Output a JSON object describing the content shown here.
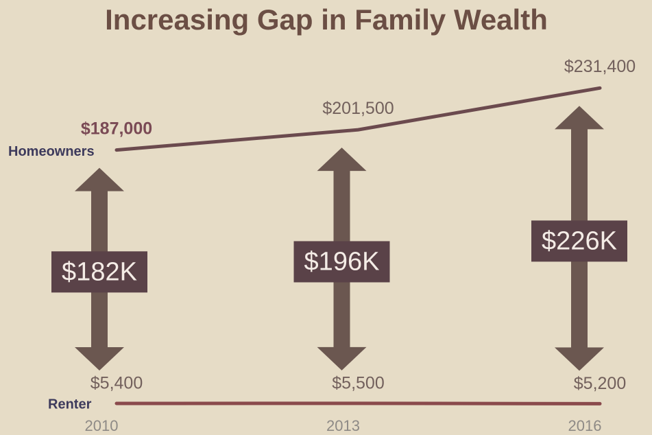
{
  "chart_data": {
    "type": "line",
    "title": "Increasing Gap in Family Wealth",
    "categories": [
      "2010",
      "2013",
      "2016"
    ],
    "series": [
      {
        "name": "Homeowners",
        "color": "#6b4a4e",
        "values": [
          187000,
          201500,
          231400
        ],
        "value_labels": [
          "$187,000",
          "$201,500",
          "$231,400"
        ]
      },
      {
        "name": "Renter",
        "color": "#8a4a4c",
        "values": [
          5400,
          5500,
          5200
        ],
        "value_labels": [
          "$5,400",
          "$5,500",
          "$5,200"
        ]
      }
    ],
    "annotations": [
      "$182K",
      "$196K",
      "$226K"
    ],
    "ylim": [
      0,
      250000
    ]
  }
}
